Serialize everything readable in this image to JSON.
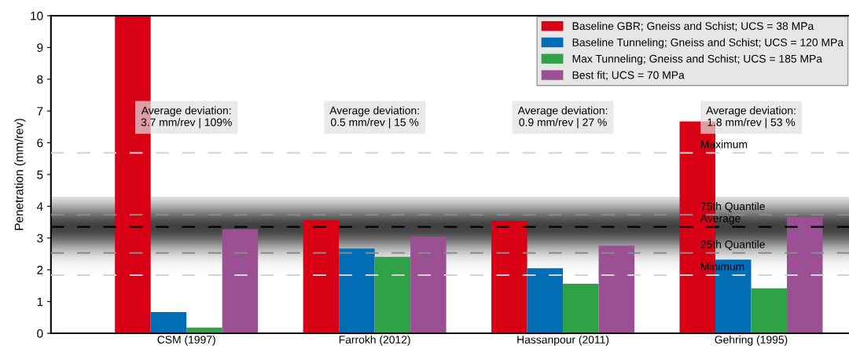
{
  "chart_data": {
    "type": "bar",
    "ylabel": "Penetration (mm/rev)",
    "categories": [
      "CSM (1997)",
      "Farrokh (2012)",
      "Hassanpour (2011)",
      "Gehring (1995)"
    ],
    "series": [
      {
        "name": "Baseline GBR; Gneiss and Schist; UCS = 38 MPa",
        "color": "#d80015",
        "values": [
          10,
          3.56,
          3.54,
          6.67
        ]
      },
      {
        "name": "Baseline Tunneling; Gneiss and Schist; UCS = 120 MPa",
        "color": "#006db5",
        "values": [
          0.67,
          2.67,
          2.05,
          2.32
        ]
      },
      {
        "name": "Max Tunneling; Gneiss and Schist; UCS = 185 MPa",
        "color": "#2fa146",
        "values": [
          0.18,
          2.41,
          1.56,
          1.42
        ]
      },
      {
        "name": "Best fit; UCS = 70 MPa",
        "color": "#9a5093",
        "values": [
          3.28,
          3.04,
          2.76,
          3.66
        ]
      }
    ],
    "ylim": [
      0,
      10
    ],
    "yticks": [
      0,
      1,
      2,
      3,
      4,
      5,
      6,
      7,
      8,
      9,
      10
    ],
    "ref_lines": [
      {
        "axis": "y",
        "value": 5.68,
        "label": "Maximum",
        "color": "#d3d3d3",
        "line_style": "dashed"
      },
      {
        "axis": "y",
        "value": 3.73,
        "label": "75th Quantile",
        "color": "#8a8a8a",
        "line_style": "dashed"
      },
      {
        "axis": "y",
        "value": 3.35,
        "label": "Average",
        "color": "#000000",
        "line_style": "dashed"
      },
      {
        "axis": "y",
        "value": 2.53,
        "label": "25th Quantile",
        "color": "#8a8a8a",
        "line_style": "dashed"
      },
      {
        "axis": "y",
        "value": 1.83,
        "label": "Minimum",
        "color": "#d3d3d3",
        "line_style": "dashed"
      }
    ],
    "bands": [
      {
        "axis": "y",
        "from": 1.9,
        "to": 4.3,
        "label": null,
        "color": "#404040"
      }
    ],
    "annotations": [
      "Average deviation:\n3.7 mm/rev | 109%",
      "Average deviation:\n0.5 mm/rev | 15 %",
      "Average deviation:\n0.9 mm/rev | 27 %",
      "Average deviation:\n1.8 mm/rev | 53 %"
    ],
    "legend": "top right",
    "grid": false
  }
}
